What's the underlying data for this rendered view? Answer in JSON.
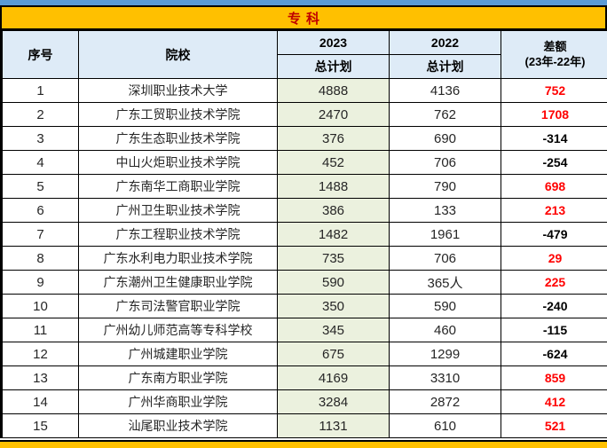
{
  "title": "专科",
  "table": {
    "columns": {
      "index": "序号",
      "school": "院校",
      "y2023": "2023",
      "y2022": "2022",
      "sub2023": "总计划",
      "sub2022": "总计划",
      "diff_line1": "差额",
      "diff_line2": "(23年-22年)"
    },
    "rows": [
      {
        "index": "1",
        "school": "深圳职业技术大学",
        "plan2023": "4888",
        "plan2022": "4136",
        "diff": "752"
      },
      {
        "index": "2",
        "school": "广东工贸职业技术学院",
        "plan2023": "2470",
        "plan2022": "762",
        "diff": "1708"
      },
      {
        "index": "3",
        "school": "广东生态职业技术学院",
        "plan2023": "376",
        "plan2022": "690",
        "diff": "-314"
      },
      {
        "index": "4",
        "school": "中山火炬职业技术学院",
        "plan2023": "452",
        "plan2022": "706",
        "diff": "-254"
      },
      {
        "index": "5",
        "school": "广东南华工商职业学院",
        "plan2023": "1488",
        "plan2022": "790",
        "diff": "698"
      },
      {
        "index": "6",
        "school": "广州卫生职业技术学院",
        "plan2023": "386",
        "plan2022": "133",
        "diff": "213"
      },
      {
        "index": "7",
        "school": "广东工程职业技术学院",
        "plan2023": "1482",
        "plan2022": "1961",
        "diff": "-479"
      },
      {
        "index": "8",
        "school": "广东水利电力职业技术学院",
        "plan2023": "735",
        "plan2022": "706",
        "diff": "29"
      },
      {
        "index": "9",
        "school": "广东潮州卫生健康职业学院",
        "plan2023": "590",
        "plan2022": "365人",
        "diff": "225"
      },
      {
        "index": "10",
        "school": "广东司法警官职业学院",
        "plan2023": "350",
        "plan2022": "590",
        "diff": "-240"
      },
      {
        "index": "11",
        "school": "广州幼儿师范高等专科学校",
        "plan2023": "345",
        "plan2022": "460",
        "diff": "-115"
      },
      {
        "index": "12",
        "school": "广州城建职业学院",
        "plan2023": "675",
        "plan2022": "1299",
        "diff": "-624"
      },
      {
        "index": "13",
        "school": "广东南方职业学院",
        "plan2023": "4169",
        "plan2022": "3310",
        "diff": "859"
      },
      {
        "index": "14",
        "school": "广州华商职业学院",
        "plan2023": "3284",
        "plan2022": "2872",
        "diff": "412"
      },
      {
        "index": "15",
        "school": "汕尾职业技术学院",
        "plan2023": "1131",
        "plan2022": "610",
        "diff": "521"
      }
    ]
  },
  "colors": {
    "accent_yellow": "#FFC000",
    "top_strip_blue": "#5B9BD5",
    "header_blue": "#DEEBF7",
    "col2023_green": "#EBF1DE",
    "title_red": "#C00000",
    "positive_diff_red": "#FF0000",
    "negative_diff_black": "#000000"
  }
}
